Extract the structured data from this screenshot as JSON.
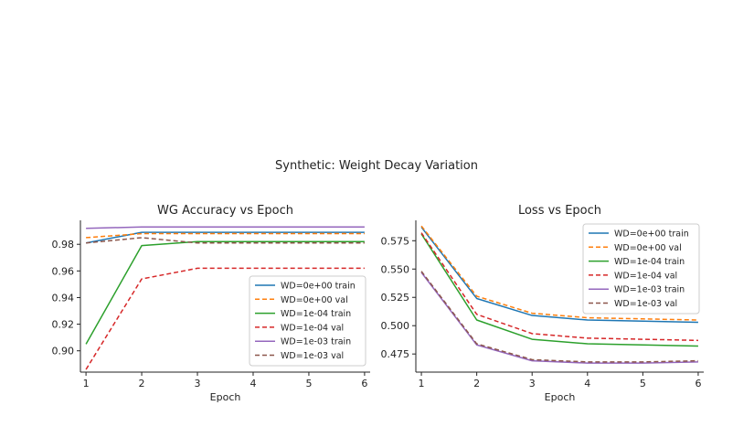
{
  "figure_title": "Synthetic: Weight Decay Variation",
  "chart_data": [
    {
      "type": "line",
      "title": "WG Accuracy vs Epoch",
      "xlabel": "Epoch",
      "ylabel": "",
      "x": [
        1,
        2,
        3,
        4,
        5,
        6
      ],
      "xlim": [
        0.9,
        6.1
      ],
      "ylim": [
        0.884,
        0.998
      ],
      "yticks": [
        0.9,
        0.92,
        0.94,
        0.96,
        0.98
      ],
      "ytick_labels": [
        "0.90",
        "0.92",
        "0.94",
        "0.96",
        "0.98"
      ],
      "xticks": [
        1,
        2,
        3,
        4,
        5,
        6
      ],
      "xtick_labels": [
        "1",
        "2",
        "3",
        "4",
        "5",
        "6"
      ],
      "legend_position": "lower-right",
      "grid": false,
      "series": [
        {
          "name": "WD=0e+00 train",
          "color": "#1f77b4",
          "dash": "solid",
          "values": [
            0.981,
            0.989,
            0.989,
            0.989,
            0.989,
            0.989
          ]
        },
        {
          "name": "WD=0e+00 val",
          "color": "#ff7f0e",
          "dash": "dashed",
          "values": [
            0.985,
            0.988,
            0.988,
            0.988,
            0.988,
            0.988
          ]
        },
        {
          "name": "WD=1e-04 train",
          "color": "#2ca02c",
          "dash": "solid",
          "values": [
            0.905,
            0.979,
            0.982,
            0.982,
            0.982,
            0.982
          ]
        },
        {
          "name": "WD=1e-04 val",
          "color": "#d62728",
          "dash": "dashed",
          "values": [
            0.886,
            0.954,
            0.962,
            0.962,
            0.962,
            0.962
          ]
        },
        {
          "name": "WD=1e-03 train",
          "color": "#9467bd",
          "dash": "solid",
          "values": [
            0.992,
            0.993,
            0.993,
            0.993,
            0.993,
            0.993
          ]
        },
        {
          "name": "WD=1e-03 val",
          "color": "#8c564b",
          "dash": "dashed",
          "values": [
            0.981,
            0.985,
            0.981,
            0.981,
            0.981,
            0.981
          ]
        }
      ]
    },
    {
      "type": "line",
      "title": "Loss vs Epoch",
      "xlabel": "Epoch",
      "ylabel": "",
      "x": [
        1,
        2,
        3,
        4,
        5,
        6
      ],
      "xlim": [
        0.9,
        6.1
      ],
      "ylim": [
        0.459,
        0.593
      ],
      "yticks": [
        0.475,
        0.5,
        0.525,
        0.55,
        0.575
      ],
      "ytick_labels": [
        "0.475",
        "0.500",
        "0.525",
        "0.550",
        "0.575"
      ],
      "xticks": [
        1,
        2,
        3,
        4,
        5,
        6
      ],
      "xtick_labels": [
        "1",
        "2",
        "3",
        "4",
        "5",
        "6"
      ],
      "legend_position": "upper-right",
      "grid": false,
      "series": [
        {
          "name": "WD=0e+00 train",
          "color": "#1f77b4",
          "dash": "solid",
          "values": [
            0.587,
            0.524,
            0.509,
            0.505,
            0.504,
            0.503
          ]
        },
        {
          "name": "WD=0e+00 val",
          "color": "#ff7f0e",
          "dash": "dashed",
          "values": [
            0.588,
            0.526,
            0.511,
            0.507,
            0.506,
            0.505
          ]
        },
        {
          "name": "WD=1e-04 train",
          "color": "#2ca02c",
          "dash": "solid",
          "values": [
            0.581,
            0.505,
            0.488,
            0.484,
            0.483,
            0.482
          ]
        },
        {
          "name": "WD=1e-04 val",
          "color": "#d62728",
          "dash": "dashed",
          "values": [
            0.582,
            0.51,
            0.493,
            0.489,
            0.488,
            0.487
          ]
        },
        {
          "name": "WD=1e-03 train",
          "color": "#9467bd",
          "dash": "solid",
          "values": [
            0.547,
            0.483,
            0.469,
            0.467,
            0.467,
            0.468
          ]
        },
        {
          "name": "WD=1e-03 val",
          "color": "#8c564b",
          "dash": "dashed",
          "values": [
            0.548,
            0.484,
            0.47,
            0.468,
            0.468,
            0.469
          ]
        }
      ]
    }
  ]
}
